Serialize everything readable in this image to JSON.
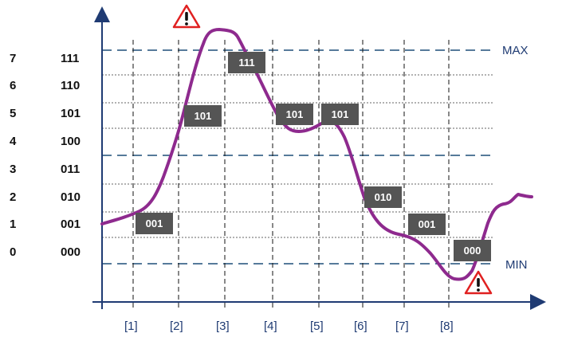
{
  "diagram": {
    "levels": [
      {
        "decimal": "7",
        "binary": "111"
      },
      {
        "decimal": "6",
        "binary": "110"
      },
      {
        "decimal": "5",
        "binary": "101"
      },
      {
        "decimal": "4",
        "binary": "100"
      },
      {
        "decimal": "3",
        "binary": "011"
      },
      {
        "decimal": "2",
        "binary": "010"
      },
      {
        "decimal": "1",
        "binary": "001"
      },
      {
        "decimal": "0",
        "binary": "000"
      }
    ],
    "max_label": "MAX",
    "min_label": "MIN",
    "sample_ticks": [
      "[1]",
      "[2]",
      "[3]",
      "[4]",
      "[5]",
      "[6]",
      "[7]",
      "[8]"
    ],
    "sample_codes": [
      "001",
      "101",
      "111",
      "101",
      "101",
      "010",
      "001",
      "000"
    ],
    "warning_icons": [
      "warning-icon",
      "warning-icon"
    ],
    "colors": {
      "signal": "#8e2a8e",
      "axis": "#1f3b73",
      "limit_line": "#1f4e79",
      "grid": "#333333",
      "code_box": "#555555",
      "warning_border": "#e02020"
    }
  }
}
